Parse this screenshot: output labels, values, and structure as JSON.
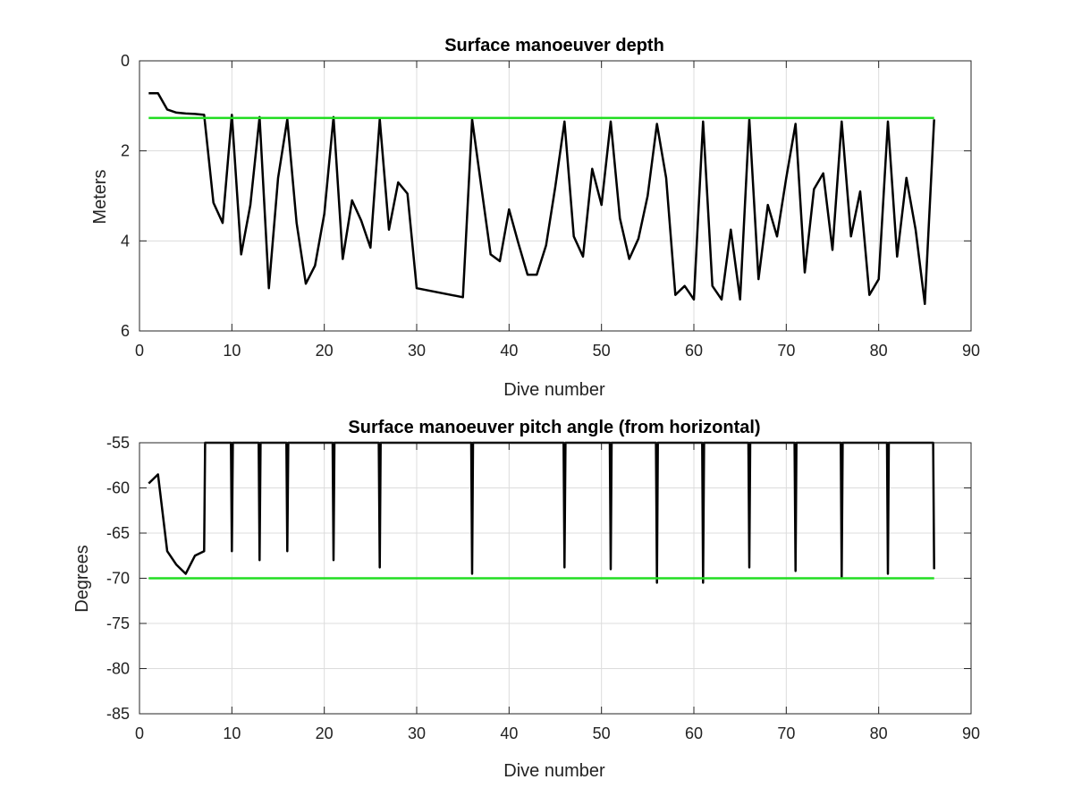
{
  "chart_data": [
    {
      "type": "line",
      "title": "Surface manoeuver depth",
      "xlabel": "Dive number",
      "ylabel": "Meters",
      "xlim": [
        0,
        90
      ],
      "ylim": [
        0,
        6
      ],
      "y_reversed": true,
      "xticks": [
        "0",
        "10",
        "20",
        "30",
        "40",
        "50",
        "60",
        "70",
        "80",
        "90"
      ],
      "yticks": [
        "0",
        "2",
        "4",
        "6"
      ],
      "grid": true,
      "series": [
        {
          "color": "#000000",
          "x": [
            1,
            2,
            3,
            4,
            5,
            6,
            7,
            8,
            9,
            10,
            11,
            12,
            13,
            14,
            15,
            16,
            17,
            18,
            19,
            20,
            21,
            22,
            23,
            24,
            25,
            26,
            27,
            28,
            29,
            30,
            35,
            36,
            37,
            38,
            39,
            40,
            41,
            42,
            43,
            44,
            45,
            46,
            47,
            48,
            49,
            50,
            51,
            52,
            53,
            54,
            55,
            56,
            57,
            58,
            59,
            60,
            61,
            62,
            63,
            64,
            65,
            66,
            67,
            68,
            69,
            70,
            71,
            72,
            73,
            74,
            75,
            76,
            77,
            78,
            79,
            80,
            81,
            82,
            83,
            84,
            85,
            86
          ],
          "y": [
            0.72,
            0.72,
            1.08,
            1.15,
            1.17,
            1.18,
            1.2,
            3.15,
            3.6,
            1.2,
            4.3,
            3.2,
            1.25,
            5.05,
            2.6,
            1.3,
            3.6,
            4.95,
            4.55,
            3.4,
            1.25,
            4.4,
            3.1,
            3.55,
            4.15,
            1.3,
            3.75,
            2.7,
            2.95,
            5.05,
            5.25,
            1.3,
            2.8,
            4.3,
            4.45,
            3.3,
            4.05,
            4.75,
            4.75,
            4.1,
            2.8,
            1.35,
            3.9,
            4.35,
            2.4,
            3.2,
            1.35,
            3.5,
            4.4,
            3.95,
            3.0,
            1.4,
            2.6,
            5.2,
            5.0,
            5.3,
            1.35,
            5.0,
            5.3,
            3.75,
            5.3,
            1.3,
            4.85,
            3.2,
            3.9,
            2.6,
            1.4,
            4.7,
            2.85,
            2.5,
            4.2,
            1.35,
            3.9,
            2.9,
            5.2,
            4.85,
            1.35,
            4.35,
            2.6,
            3.75,
            5.4,
            1.3
          ]
        },
        {
          "color": "#22dd22",
          "x": [
            1,
            86
          ],
          "y": [
            1.27,
            1.27
          ]
        }
      ]
    },
    {
      "type": "line",
      "title": "Surface manoeuver pitch angle (from horizontal)",
      "xlabel": "Dive number",
      "ylabel": "Degrees",
      "xlim": [
        0,
        90
      ],
      "ylim": [
        -85,
        -55
      ],
      "xticks": [
        "0",
        "10",
        "20",
        "30",
        "40",
        "50",
        "60",
        "70",
        "80",
        "90"
      ],
      "yticks": [
        "-55",
        "-60",
        "-65",
        "-70",
        "-75",
        "-80",
        "-85"
      ],
      "grid": true,
      "series": [
        {
          "color": "#000000",
          "x": [
            1,
            2,
            3,
            4,
            5,
            6,
            7,
            7.1,
            9.9,
            10,
            10.1,
            12.9,
            13,
            13.1,
            15.9,
            16,
            16.1,
            20.9,
            21,
            21.1,
            25.9,
            26,
            26.1,
            35.9,
            36,
            36.1,
            45.9,
            46,
            46.1,
            50.9,
            51,
            51.1,
            55.9,
            56,
            56.1,
            60.9,
            61,
            61.1,
            65.9,
            66,
            66.1,
            70.9,
            71,
            71.1,
            75.9,
            76,
            76.1,
            80.9,
            81,
            81.1,
            85.9,
            86
          ],
          "y": [
            -59.5,
            -58.5,
            -67,
            -68.5,
            -69.5,
            -67.5,
            -67,
            -55,
            -55,
            -67,
            -55,
            -55,
            -68,
            -55,
            -55,
            -67,
            -55,
            -55,
            -68,
            -55,
            -55,
            -68.8,
            -55,
            -55,
            -69.5,
            -55,
            -55,
            -68.8,
            -55,
            -55,
            -69,
            -55,
            -55,
            -70.5,
            -55,
            -55,
            -70.5,
            -55,
            -55,
            -68.8,
            -55,
            -55,
            -69.2,
            -55,
            -55,
            -70,
            -55,
            -55,
            -69.5,
            -55,
            -55,
            -69
          ]
        },
        {
          "color": "#22dd22",
          "x": [
            1,
            86
          ],
          "y": [
            -70,
            -70
          ]
        }
      ]
    }
  ]
}
